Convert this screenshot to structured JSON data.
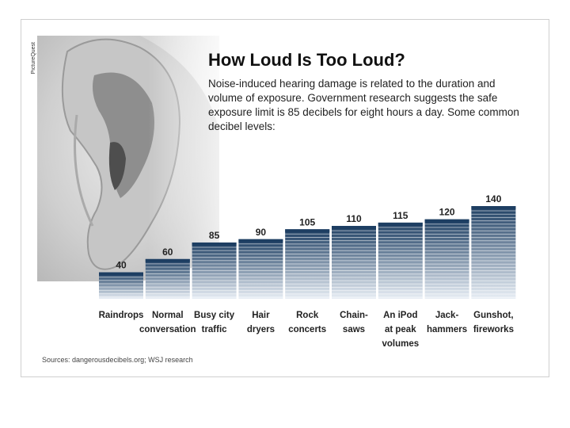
{
  "credit": "PictureQuest",
  "source": "Sources: dangerousdecibels.org; WSJ research",
  "colors": {
    "bar_top": "#1d3e62",
    "bar_bottom": "#e8eef5",
    "stripe": "#ffffff"
  },
  "chart_data": {
    "type": "bar",
    "title": "How Loud Is Too Loud?",
    "subtitle": "Noise-induced hearing damage is related to the duration and volume of exposure. Government research suggests the safe exposure limit is 85 decibels for eight hours a day. Some common decibel levels:",
    "xlabel": "",
    "ylabel": "",
    "grid": false,
    "ylim": [
      0,
      140
    ],
    "categories": [
      "Raindrops",
      "Normal conversation",
      "Busy city traffic",
      "Hair dryers",
      "Rock concerts",
      "Chain-saws",
      "An iPod at peak volumes",
      "Jack-hammers",
      "Gunshot, fireworks"
    ],
    "category_lines": [
      [
        "Raindrops"
      ],
      [
        "Normal",
        "conversation"
      ],
      [
        "Busy city",
        "traffic"
      ],
      [
        "Hair",
        "dryers"
      ],
      [
        "Rock",
        "concerts"
      ],
      [
        "Chain-",
        "saws"
      ],
      [
        "An iPod",
        "at peak",
        "volumes"
      ],
      [
        "Jack-",
        "hammers"
      ],
      [
        "Gunshot,",
        "fireworks"
      ]
    ],
    "values": [
      40,
      60,
      85,
      90,
      105,
      110,
      115,
      120,
      140
    ]
  }
}
